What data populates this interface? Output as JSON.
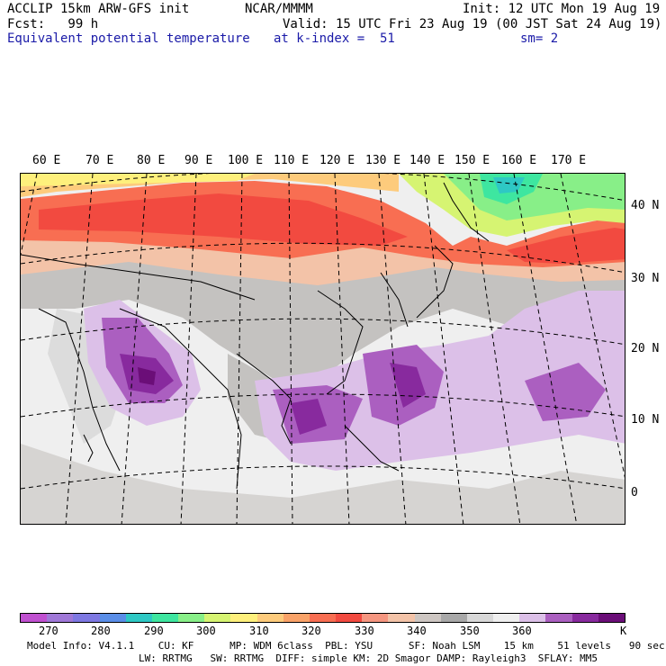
{
  "header": {
    "model": "ACCLIP 15km ARW-GFS init",
    "center": "NCAR/MMMM",
    "init": "Init: 12 UTC Mon 19 Aug 19",
    "fcst": "Fcst:   99 h",
    "valid": "Valid: 15 UTC Fri 23 Aug 19 (00 JST Sat 24 Aug 19)",
    "field": "Equivalent potential temperature",
    "level": "at k-index =  51",
    "smooth": "sm= 2"
  },
  "map": {
    "lon_labels": [
      "60 E",
      "70 E",
      "80 E",
      "90 E",
      "100 E",
      "110 E",
      "120 E",
      "130 E",
      "140 E",
      "150 E",
      "160 E",
      "170 E"
    ],
    "lat_labels": [
      "40 N",
      "30 N",
      "20 N",
      "10 N",
      "0"
    ]
  },
  "colorbar": {
    "unit": "K",
    "tick_labels": [
      "270",
      "280",
      "290",
      "300",
      "310",
      "320",
      "330",
      "340",
      "350",
      "360"
    ],
    "colors": [
      "#c050d0",
      "#a078d8",
      "#7e78e2",
      "#5a8ee8",
      "#2ec8c4",
      "#3ee6a0",
      "#88ef88",
      "#d6f472",
      "#fef07c",
      "#fdcb7c",
      "#f9a268",
      "#f86e52",
      "#f24a40",
      "#f59680",
      "#f3c3a8",
      "#cdc6c2",
      "#a8a8a8",
      "#d8d8d8",
      "#efefef",
      "#dcc0e8",
      "#ab5fc0",
      "#882a9e",
      "#6b0e78"
    ]
  },
  "footer": {
    "line1": "Model Info: V4.1.1    CU: KF      MP: WDM 6class  PBL: YSU      SF: Noah LSM    15 km    51 levels   90 sec",
    "line2": "LW: RRTMG   SW: RRTMG  DIFF: simple KM: 2D Smagor DAMP: Rayleigh3  SFLAY: MM5"
  }
}
